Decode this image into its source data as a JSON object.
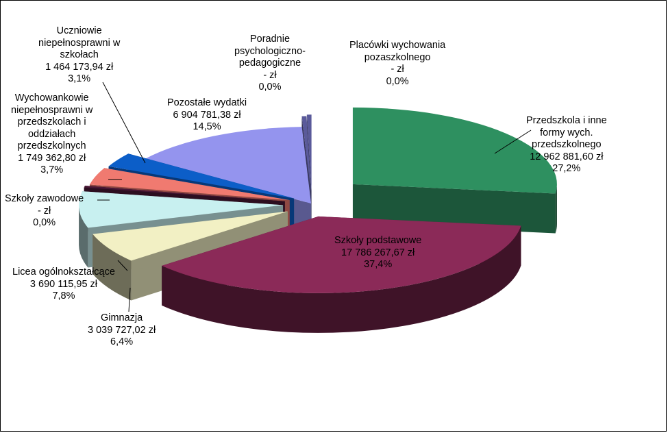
{
  "chart_data": {
    "type": "pie",
    "style": "3d-exploded",
    "currency": "zł",
    "slices": [
      {
        "key": "przedszkola",
        "name_lines": [
          "Przedszkola i inne",
          "formy wych.",
          "przedszkolnego"
        ],
        "amount_text": "12 962 881,60 zł",
        "percent_text": "27,2%",
        "value": 12962881.6,
        "percent": 27.2,
        "color": "#2e9060"
      },
      {
        "key": "podstawowe",
        "name_lines": [
          "Szkoły podstawowe"
        ],
        "amount_text": "17 786 267,67 zł",
        "percent_text": "37,4%",
        "value": 17786267.67,
        "percent": 37.4,
        "color": "#8b2a58"
      },
      {
        "key": "gimnazja",
        "name_lines": [
          "Gimnazja"
        ],
        "amount_text": "3 039 727,02 zł",
        "percent_text": "6,4%",
        "value": 3039727.02,
        "percent": 6.4,
        "color": "#f2f0c4"
      },
      {
        "key": "licea",
        "name_lines": [
          "Licea ogólnokształcące"
        ],
        "amount_text": "3 690 115,95 zł",
        "percent_text": "7,8%",
        "value": 3690115.95,
        "percent": 7.8,
        "color": "#c8f0f0"
      },
      {
        "key": "zawodowe",
        "name_lines": [
          "Szkoły zawodowe"
        ],
        "amount_text": "-   zł",
        "percent_text": "0,0%",
        "value": 0,
        "percent": 0.0,
        "color": "#4a1836"
      },
      {
        "key": "wych_niepelnosprawni",
        "name_lines": [
          "Wychowankowie",
          "niepełnosprawni  w",
          "przedszkolach  i",
          "oddziałach",
          "przedszkolnych"
        ],
        "amount_text": "1 749 362,80 zł",
        "percent_text": "3,7%",
        "value": 1749362.8,
        "percent": 3.7,
        "color": "#f07a70"
      },
      {
        "key": "uczn_niepelnosprawni",
        "name_lines": [
          "Uczniowie",
          "niepełnosprawni  w",
          "szkołach"
        ],
        "amount_text": "1 464 173,94 zł",
        "percent_text": "3,1%",
        "value": 1464173.94,
        "percent": 3.1,
        "color": "#0c5ec8"
      },
      {
        "key": "pozostale",
        "name_lines": [
          "Pozostałe  wydatki"
        ],
        "amount_text": "6 904 781,38 zł",
        "percent_text": "14,5%",
        "value": 6904781.38,
        "percent": 14.5,
        "color": "#9494ee"
      },
      {
        "key": "poradnie",
        "name_lines": [
          "Poradnie",
          "psychologiczno-",
          "pedagogiczne"
        ],
        "amount_text": "-   zł",
        "percent_text": "0,0%",
        "value": 0,
        "percent": 0.0,
        "color": "#5a5a9a"
      },
      {
        "key": "placowki",
        "name_lines": [
          "Placówki wychowania",
          "pozaszkolnego"
        ],
        "amount_text": "-   zł",
        "percent_text": "0,0%",
        "value": 0,
        "percent": 0.0,
        "color": "#5a5a9a"
      }
    ]
  }
}
